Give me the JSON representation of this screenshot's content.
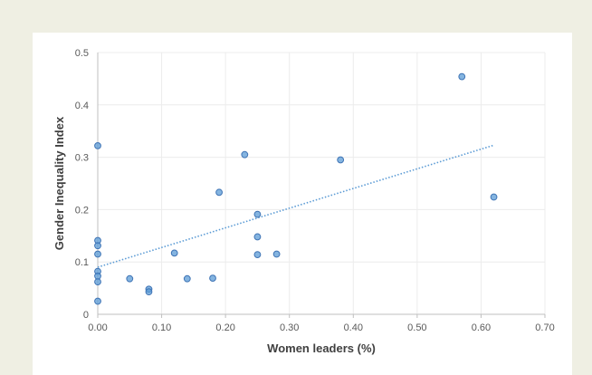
{
  "chart_data": {
    "type": "scatter",
    "title": "",
    "xlabel": "Women leaders (%)",
    "ylabel": "Gender Inequality Index",
    "xlim": [
      0,
      0.7
    ],
    "ylim": [
      0,
      0.5
    ],
    "x_ticks": [
      "0.00",
      "0.10",
      "0.20",
      "0.30",
      "0.40",
      "0.50",
      "0.60",
      "0.70"
    ],
    "y_ticks": [
      "0",
      "0.1",
      "0.2",
      "0.3",
      "0.4",
      "0.5"
    ],
    "grid": true,
    "legend": "none",
    "series": [
      {
        "points": [
          [
            0.0,
            0.322
          ],
          [
            0.0,
            0.141
          ],
          [
            0.0,
            0.131
          ],
          [
            0.0,
            0.115
          ],
          [
            0.0,
            0.082
          ],
          [
            0.0,
            0.073
          ],
          [
            0.0,
            0.062
          ],
          [
            0.0,
            0.025
          ],
          [
            0.05,
            0.068
          ],
          [
            0.08,
            0.048
          ],
          [
            0.08,
            0.043
          ],
          [
            0.12,
            0.117
          ],
          [
            0.14,
            0.068
          ],
          [
            0.18,
            0.069
          ],
          [
            0.19,
            0.233
          ],
          [
            0.23,
            0.305
          ],
          [
            0.25,
            0.191
          ],
          [
            0.25,
            0.148
          ],
          [
            0.25,
            0.114
          ],
          [
            0.28,
            0.115
          ],
          [
            0.38,
            0.295
          ],
          [
            0.57,
            0.454
          ],
          [
            0.62,
            0.224
          ]
        ],
        "color": "#5b9bd5"
      }
    ],
    "trendline": {
      "style": "dotted",
      "color": "#5b9bd5",
      "start": [
        0.0,
        0.09
      ],
      "end": [
        0.62,
        0.323
      ]
    }
  }
}
